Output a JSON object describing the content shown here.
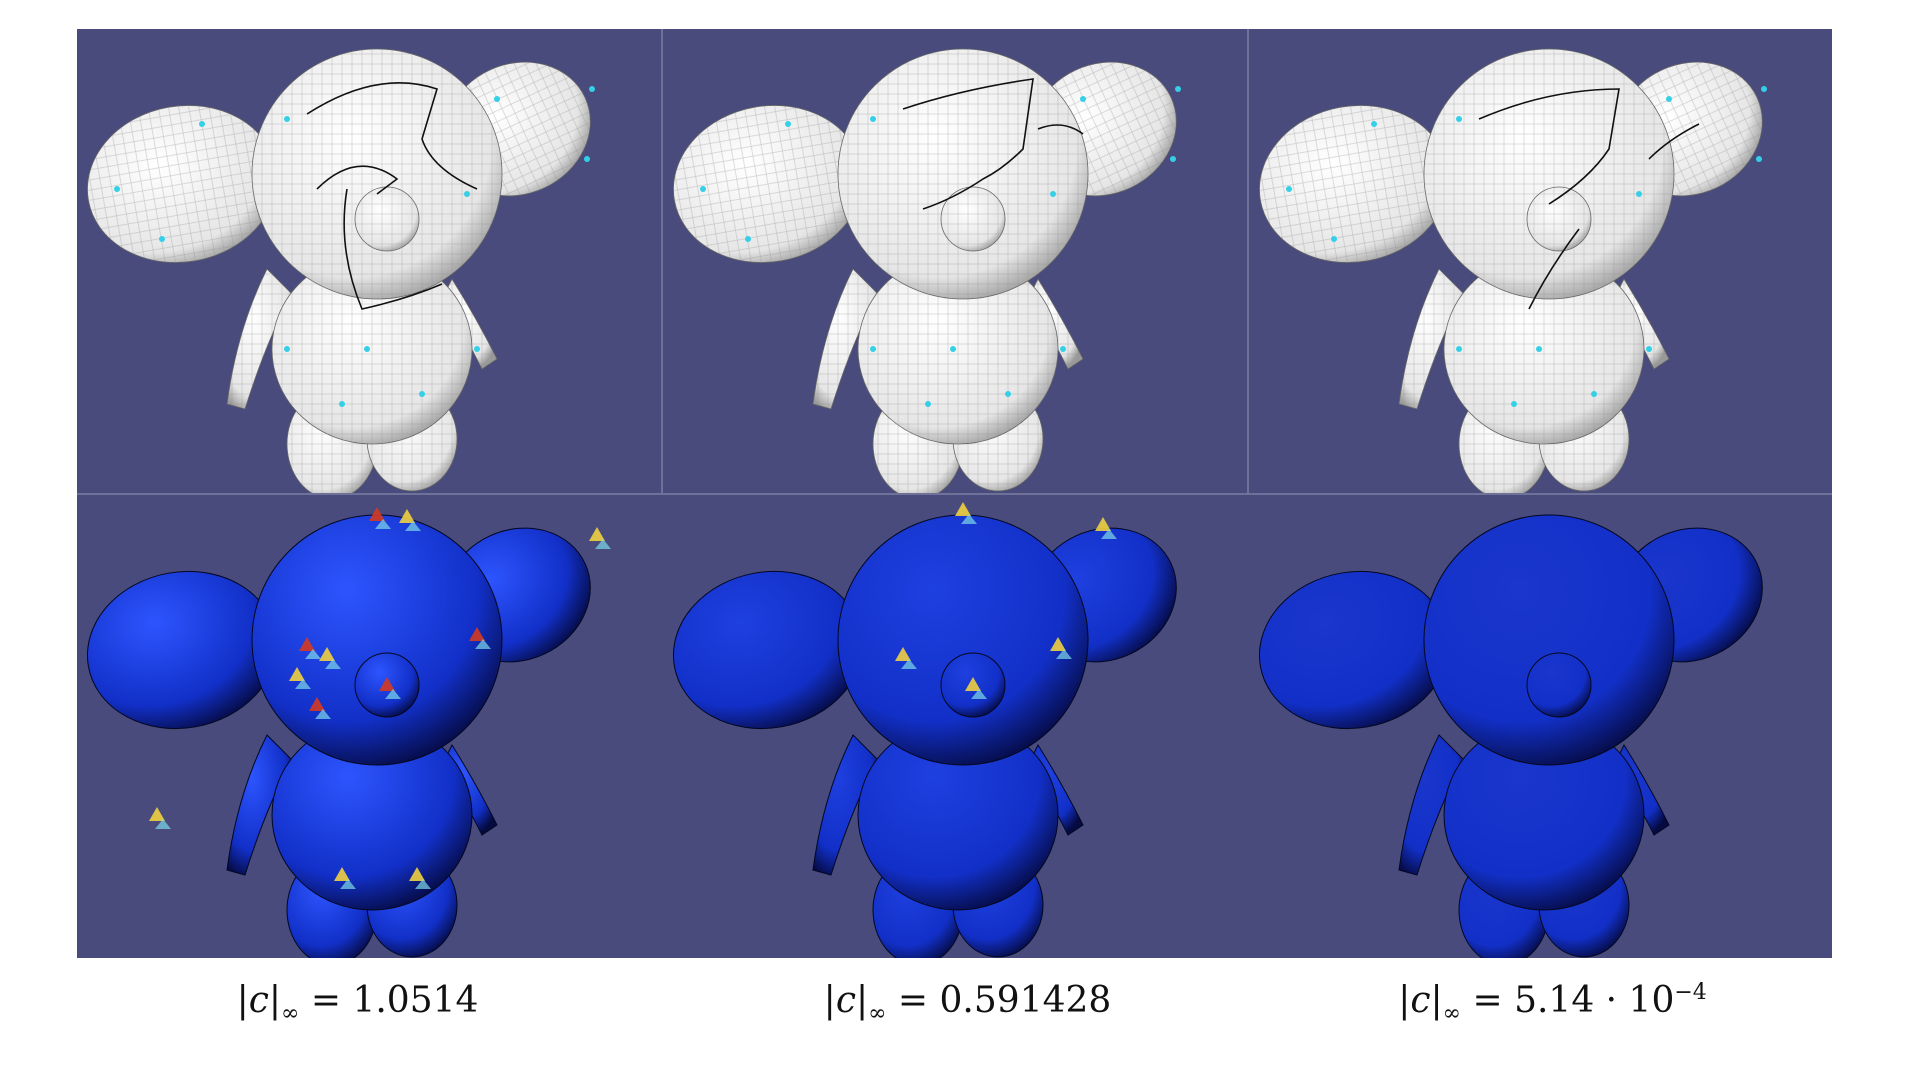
{
  "figure": {
    "columns": [
      {
        "caption": {
          "lhs_var": "c",
          "sub": "∞",
          "eq": "=",
          "value": "1.0514",
          "exp": ""
        },
        "top_render": "mesh-with-cut-curves",
        "bottom_render": "error-heatmap-high"
      },
      {
        "caption": {
          "lhs_var": "c",
          "sub": "∞",
          "eq": "=",
          "value": "0.591428",
          "exp": ""
        },
        "top_render": "mesh-with-cut-curves",
        "bottom_render": "error-heatmap-medium"
      },
      {
        "caption": {
          "lhs_var": "c",
          "sub": "∞",
          "eq": "=",
          "value": "5.14 · 10",
          "exp": "−4"
        },
        "top_render": "mesh-with-cut-curves",
        "bottom_render": "error-heatmap-low"
      }
    ],
    "colors": {
      "background": "#484b7c",
      "mesh_surface": "#e6e6e6",
      "heatmap_base": "#1230c8",
      "heatmap_hot": "#d63a20",
      "heatmap_warm": "#f0d040",
      "cut_curve": "#111111",
      "vertex_marker": "#35d0e8"
    }
  }
}
